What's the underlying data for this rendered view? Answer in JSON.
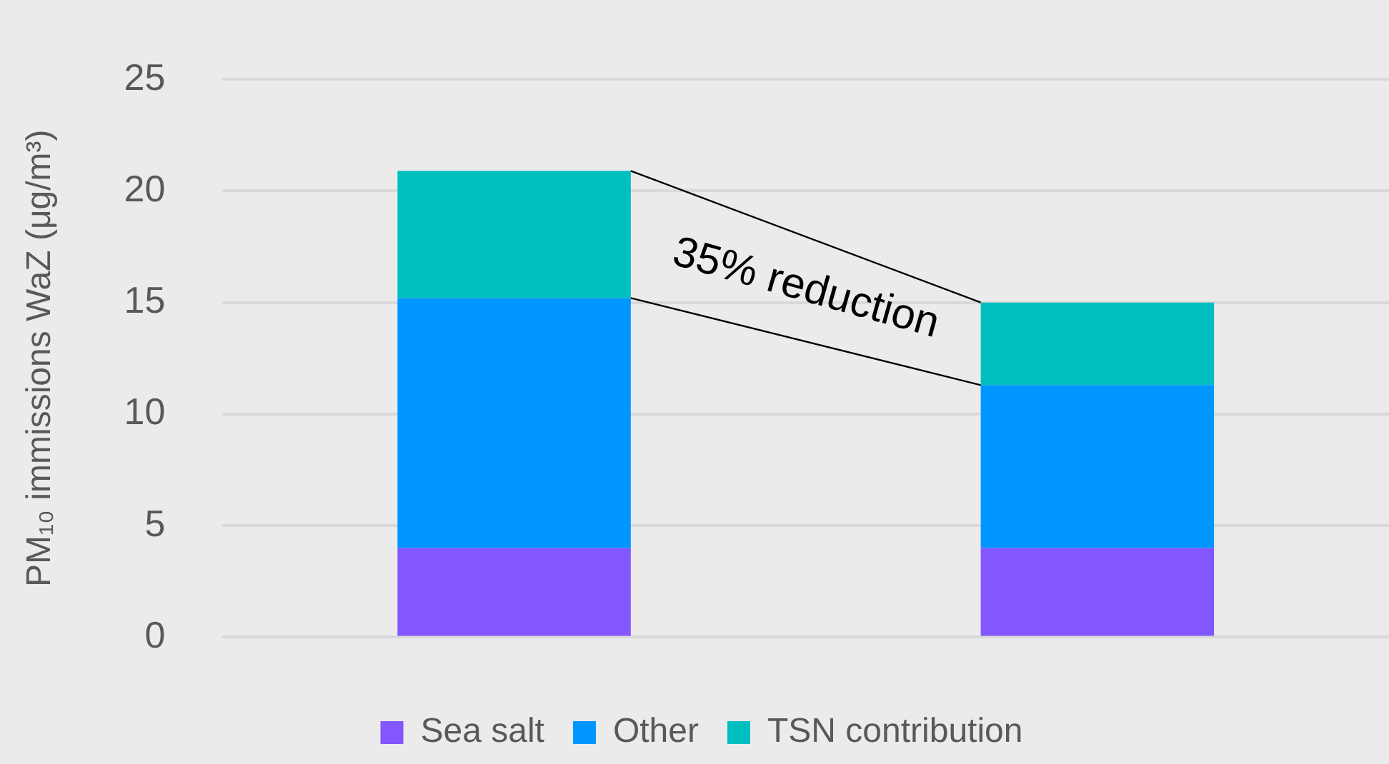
{
  "chart_data": {
    "type": "bar",
    "stacked": true,
    "ylabel": "PM₁₀ immissions WaZ (μg/m³)",
    "categories": [
      null,
      null
    ],
    "series": [
      {
        "name": "Sea salt",
        "color": "#8257fe",
        "values": [
          4.0,
          4.0
        ]
      },
      {
        "name": "Other",
        "color": "#0096ff",
        "values": [
          11.2,
          7.3
        ]
      },
      {
        "name": "TSN contribution",
        "color": "#00bfbf",
        "values": [
          5.7,
          3.7
        ]
      }
    ],
    "ylim": [
      0,
      25
    ],
    "yticks": [
      0,
      5,
      10,
      15,
      20,
      25
    ],
    "grid": "y",
    "legend": "bottom",
    "annotations": [
      "35% reduction"
    ]
  }
}
